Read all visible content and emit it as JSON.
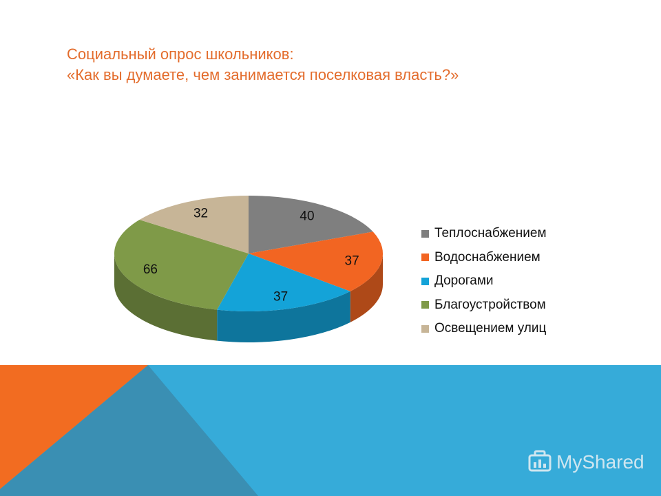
{
  "title": {
    "line1": "Социальный опрос школьников:",
    "line2": "«Как вы думаете, чем занимается поселковая власть?»"
  },
  "chart_data": {
    "type": "pie",
    "style": "3d",
    "labels": [
      "Теплоснабжением",
      "Водоснабжением",
      "Дорогами",
      "Благоустройством",
      "Освещением улиц"
    ],
    "values": [
      40,
      37,
      37,
      66,
      32
    ],
    "colors": [
      "#7f7f7f",
      "#f26522",
      "#14a3d8",
      "#7f9a48",
      "#c7b597"
    ],
    "data_labels": [
      "40",
      "37",
      "37",
      "66",
      "32"
    ],
    "legend_position": "right"
  },
  "watermark": {
    "text": "MyShared"
  },
  "colors": {
    "title": "#e36c2c",
    "band_blue": "#2fa9d9",
    "band_orange": "#f26c21",
    "band_slate": "#3a8fb3"
  }
}
